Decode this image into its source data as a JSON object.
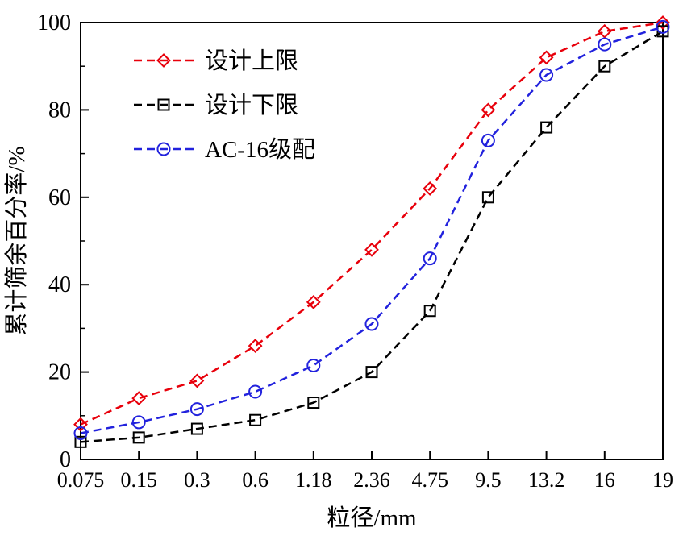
{
  "figure": {
    "background": "#ffffff",
    "axis_color": "#000000"
  },
  "chart_data": {
    "type": "line",
    "title": "",
    "xlabel": "粒径/mm",
    "ylabel": "累计筛余百分率/%",
    "categories": [
      "0.075",
      "0.15",
      "0.3",
      "0.6",
      "1.18",
      "2.36",
      "4.75",
      "9.5",
      "13.2",
      "16",
      "19"
    ],
    "ylim": [
      0,
      100
    ],
    "yticks": [
      0,
      20,
      40,
      60,
      80,
      100
    ],
    "y_minor_step": 10,
    "grid": false,
    "legend_position": "upper-left-inside",
    "line_style": "dashed",
    "series": [
      {
        "id": "design-upper-limit",
        "name": "设计上限",
        "color": "#e8000b",
        "marker": "diamond",
        "values": [
          8,
          14,
          18,
          26,
          36,
          48,
          62,
          80,
          92,
          98,
          100
        ]
      },
      {
        "id": "design-lower-limit",
        "name": "设计下限",
        "color": "#000000",
        "marker": "square",
        "values": [
          4,
          5,
          7,
          9,
          13,
          20,
          34,
          60,
          76,
          90,
          98
        ]
      },
      {
        "id": "ac16-gradation",
        "name": "AC-16级配",
        "color": "#2222dd",
        "marker": "circle",
        "values": [
          6,
          8.5,
          11.5,
          15.5,
          21.5,
          31,
          46,
          73,
          88,
          95,
          99
        ]
      }
    ]
  }
}
